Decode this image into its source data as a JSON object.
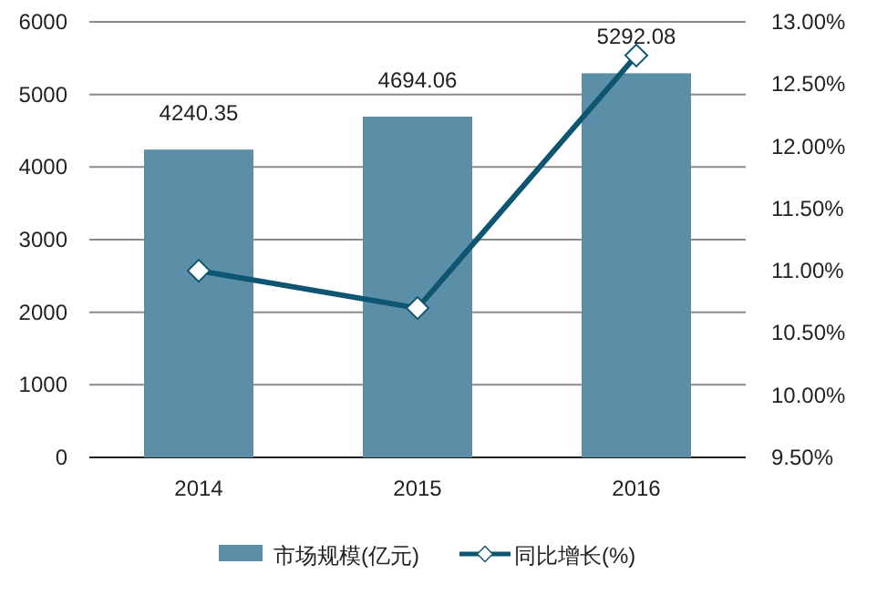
{
  "chart_data": {
    "type": "bar",
    "categories": [
      "2014",
      "2015",
      "2016"
    ],
    "series": [
      {
        "name": "市场规模(亿元)",
        "color": "#5b8fa8",
        "values": [
          4240.35,
          4694.06,
          5292.08
        ],
        "value_labels": [
          "4240.35",
          "4694.06",
          "5292.08"
        ]
      },
      {
        "name": "同比增长(%)",
        "type": "line",
        "axis": "y2",
        "color": "#0d5570",
        "marker": "diamond",
        "values": [
          11.0,
          10.7,
          12.73
        ]
      }
    ],
    "ylim": [
      0,
      6000
    ],
    "yticks": [
      0,
      1000,
      2000,
      3000,
      4000,
      5000,
      6000
    ],
    "y2lim": [
      9.5,
      13
    ],
    "y2ticks": [
      {
        "value": 9.5,
        "label": "9.50%"
      },
      {
        "value": 10,
        "label": "10.00%"
      },
      {
        "value": 10.5,
        "label": "10.50%"
      },
      {
        "value": 11,
        "label": "11.00%"
      },
      {
        "value": 11.5,
        "label": "11.50%"
      },
      {
        "value": 12,
        "label": "12.00%"
      },
      {
        "value": 12.5,
        "label": "12.50%"
      },
      {
        "value": 13,
        "label": "13.00%"
      }
    ],
    "grid": "y",
    "legend": "bottom"
  }
}
